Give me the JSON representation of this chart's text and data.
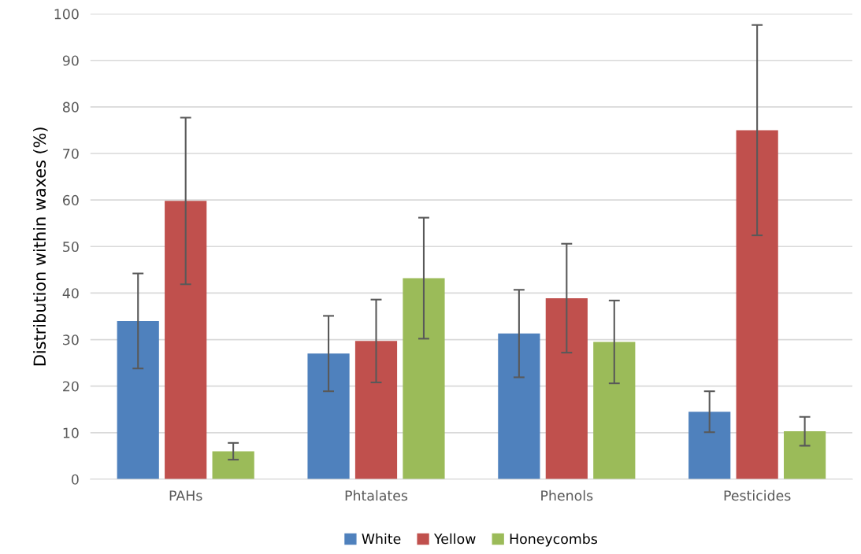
{
  "chart_data": {
    "type": "bar",
    "ylabel": "Distribution within waxes (%)",
    "categories": [
      "PAHs",
      "Phtalates",
      "Phenols",
      "Pesticides"
    ],
    "series": [
      {
        "name": "White",
        "color": "#4f81bd",
        "values": [
          34.0,
          27.0,
          31.3,
          14.5
        ],
        "errors": [
          10.2,
          8.1,
          9.4,
          4.4
        ]
      },
      {
        "name": "Yellow",
        "color": "#c0504d",
        "values": [
          59.8,
          29.7,
          38.9,
          75.0
        ],
        "errors": [
          17.9,
          8.9,
          11.7,
          22.6
        ]
      },
      {
        "name": "Honeycombs",
        "color": "#9bbb59",
        "values": [
          6.0,
          43.2,
          29.5,
          10.3
        ],
        "errors": [
          1.8,
          13.0,
          8.9,
          3.1
        ]
      }
    ],
    "ylim": [
      0,
      100
    ],
    "yticks": [
      0,
      10,
      20,
      30,
      40,
      50,
      60,
      70,
      80,
      90,
      100
    ],
    "grid": "y",
    "legend": "bottom"
  }
}
